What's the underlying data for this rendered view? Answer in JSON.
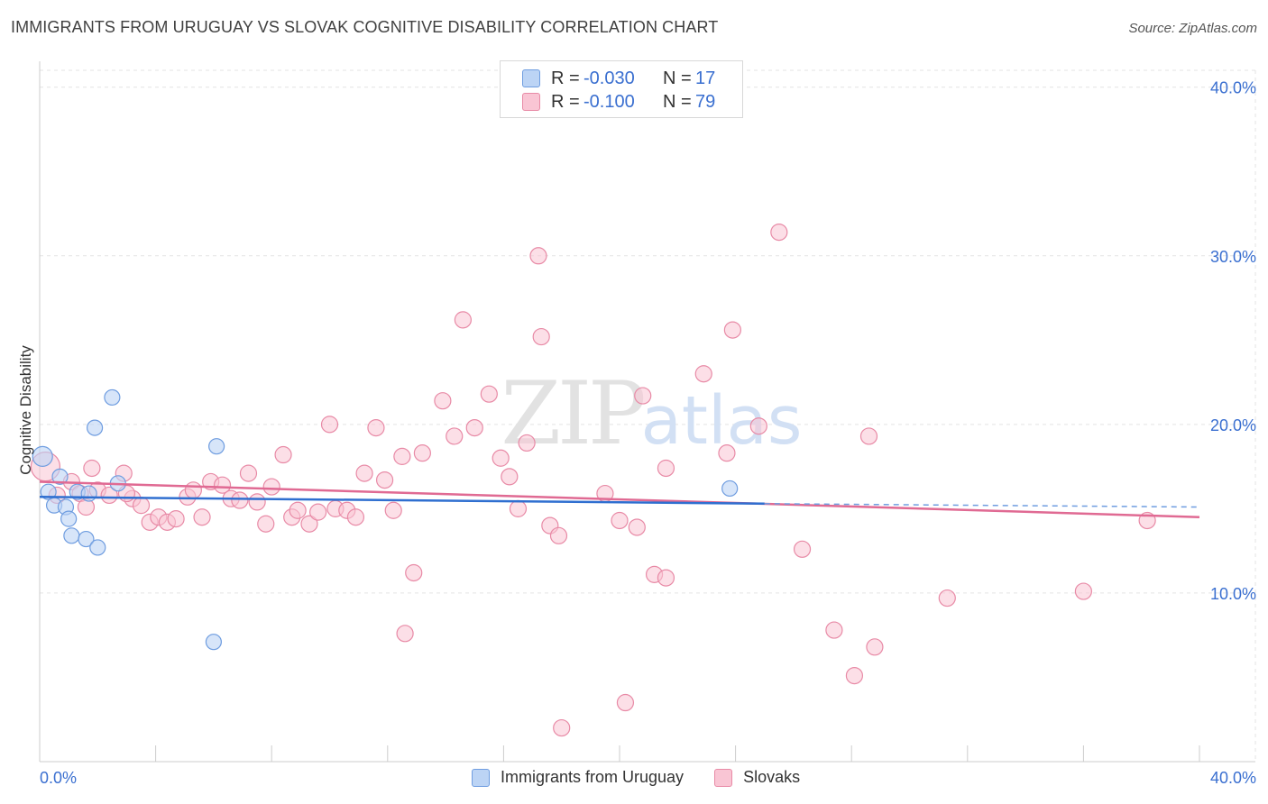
{
  "title": "IMMIGRANTS FROM URUGUAY VS SLOVAK COGNITIVE DISABILITY CORRELATION CHART",
  "source": "Source: ZipAtlas.com",
  "watermark": {
    "zip": "ZIP",
    "atlas": "atlas"
  },
  "colors": {
    "blue_fill": "#bcd4f5",
    "blue_stroke": "#6f9de0",
    "blue_line": "#2f6fd0",
    "pink_fill": "#f9c5d4",
    "pink_stroke": "#e88aa6",
    "pink_line": "#e06a93",
    "axis_label": "#3a6fd0",
    "grid": "#e3e3e3"
  },
  "legend_top": [
    {
      "r_label": "R =",
      "r_value": "-0.030",
      "n_label": "N =",
      "n_value": "17"
    },
    {
      "r_label": "R =",
      "r_value": "-0.100",
      "n_label": "N =",
      "n_value": "79"
    }
  ],
  "legend_bottom": [
    "Immigrants from Uruguay",
    "Slovaks"
  ],
  "chart_data": {
    "type": "scatter",
    "title": "IMMIGRANTS FROM URUGUAY VS SLOVAK COGNITIVE DISABILITY CORRELATION CHART",
    "xlabel": "",
    "ylabel": "Cognitive Disability",
    "xlim": [
      0,
      40
    ],
    "ylim": [
      0,
      41
    ],
    "x_tick_labels": [
      "0.0%",
      "40.0%"
    ],
    "y_ticks": [
      10,
      20,
      30,
      40
    ],
    "y_tick_labels": [
      "10.0%",
      "20.0%",
      "30.0%",
      "40.0%"
    ],
    "grid": true,
    "series": [
      {
        "name": "Immigrants from Uruguay",
        "r": -0.03,
        "n": 17,
        "trend": {
          "x": [
            0,
            25
          ],
          "y": [
            15.7,
            15.3
          ]
        },
        "trend_dashed": {
          "x": [
            25,
            40
          ],
          "y": [
            15.3,
            15.1
          ]
        },
        "points": [
          {
            "x": 0.1,
            "y": 18.1
          },
          {
            "x": 0.3,
            "y": 16.0
          },
          {
            "x": 0.5,
            "y": 15.2
          },
          {
            "x": 0.7,
            "y": 16.9
          },
          {
            "x": 0.9,
            "y": 15.1
          },
          {
            "x": 1.0,
            "y": 14.4
          },
          {
            "x": 1.1,
            "y": 13.4
          },
          {
            "x": 1.3,
            "y": 16.0
          },
          {
            "x": 1.6,
            "y": 13.2
          },
          {
            "x": 1.7,
            "y": 15.9
          },
          {
            "x": 1.9,
            "y": 19.8
          },
          {
            "x": 2.0,
            "y": 12.7
          },
          {
            "x": 2.5,
            "y": 21.6
          },
          {
            "x": 2.7,
            "y": 16.5
          },
          {
            "x": 6.1,
            "y": 18.7
          },
          {
            "x": 6.0,
            "y": 7.1
          },
          {
            "x": 23.8,
            "y": 16.2
          }
        ]
      },
      {
        "name": "Slovaks",
        "r": -0.1,
        "n": 79,
        "trend": {
          "x": [
            0,
            40
          ],
          "y": [
            16.6,
            14.5
          ]
        },
        "points": [
          {
            "x": 0.2,
            "y": 17.5
          },
          {
            "x": 0.6,
            "y": 15.8
          },
          {
            "x": 1.1,
            "y": 16.6
          },
          {
            "x": 1.4,
            "y": 15.9
          },
          {
            "x": 1.6,
            "y": 15.1
          },
          {
            "x": 1.8,
            "y": 17.4
          },
          {
            "x": 2.0,
            "y": 16.1
          },
          {
            "x": 2.4,
            "y": 15.8
          },
          {
            "x": 2.9,
            "y": 17.1
          },
          {
            "x": 3.2,
            "y": 15.6
          },
          {
            "x": 3.5,
            "y": 15.2
          },
          {
            "x": 3.8,
            "y": 14.2
          },
          {
            "x": 4.1,
            "y": 14.5
          },
          {
            "x": 4.4,
            "y": 14.2
          },
          {
            "x": 4.7,
            "y": 14.4
          },
          {
            "x": 5.1,
            "y": 15.7
          },
          {
            "x": 5.3,
            "y": 16.1
          },
          {
            "x": 5.6,
            "y": 14.5
          },
          {
            "x": 5.9,
            "y": 16.6
          },
          {
            "x": 6.3,
            "y": 16.4
          },
          {
            "x": 6.6,
            "y": 15.6
          },
          {
            "x": 6.9,
            "y": 15.5
          },
          {
            "x": 7.2,
            "y": 17.1
          },
          {
            "x": 7.5,
            "y": 15.4
          },
          {
            "x": 7.8,
            "y": 14.1
          },
          {
            "x": 8.0,
            "y": 16.3
          },
          {
            "x": 8.4,
            "y": 18.2
          },
          {
            "x": 8.7,
            "y": 14.5
          },
          {
            "x": 8.9,
            "y": 14.9
          },
          {
            "x": 9.3,
            "y": 14.1
          },
          {
            "x": 9.6,
            "y": 14.8
          },
          {
            "x": 10.0,
            "y": 20.0
          },
          {
            "x": 10.2,
            "y": 15.0
          },
          {
            "x": 10.6,
            "y": 14.9
          },
          {
            "x": 10.9,
            "y": 14.5
          },
          {
            "x": 11.2,
            "y": 17.1
          },
          {
            "x": 11.6,
            "y": 19.8
          },
          {
            "x": 11.9,
            "y": 16.7
          },
          {
            "x": 12.2,
            "y": 14.9
          },
          {
            "x": 12.5,
            "y": 18.1
          },
          {
            "x": 12.6,
            "y": 7.6
          },
          {
            "x": 12.9,
            "y": 11.2
          },
          {
            "x": 13.2,
            "y": 18.3
          },
          {
            "x": 13.9,
            "y": 21.4
          },
          {
            "x": 14.3,
            "y": 19.3
          },
          {
            "x": 14.6,
            "y": 26.2
          },
          {
            "x": 15.0,
            "y": 19.8
          },
          {
            "x": 15.5,
            "y": 21.8
          },
          {
            "x": 15.9,
            "y": 18.0
          },
          {
            "x": 16.2,
            "y": 16.9
          },
          {
            "x": 16.5,
            "y": 15.0
          },
          {
            "x": 16.8,
            "y": 18.9
          },
          {
            "x": 17.3,
            "y": 25.2
          },
          {
            "x": 17.6,
            "y": 14.0
          },
          {
            "x": 17.9,
            "y": 13.4
          },
          {
            "x": 17.2,
            "y": 30.0
          },
          {
            "x": 18.0,
            "y": 2.0
          },
          {
            "x": 19.5,
            "y": 15.9
          },
          {
            "x": 20.0,
            "y": 14.3
          },
          {
            "x": 20.2,
            "y": 3.5
          },
          {
            "x": 20.6,
            "y": 13.9
          },
          {
            "x": 20.8,
            "y": 21.7
          },
          {
            "x": 21.2,
            "y": 11.1
          },
          {
            "x": 21.6,
            "y": 10.9
          },
          {
            "x": 21.6,
            "y": 17.4
          },
          {
            "x": 22.9,
            "y": 23.0
          },
          {
            "x": 23.7,
            "y": 18.3
          },
          {
            "x": 23.9,
            "y": 25.6
          },
          {
            "x": 24.8,
            "y": 19.9
          },
          {
            "x": 25.5,
            "y": 31.4
          },
          {
            "x": 26.3,
            "y": 12.6
          },
          {
            "x": 27.4,
            "y": 7.8
          },
          {
            "x": 28.1,
            "y": 5.1
          },
          {
            "x": 28.8,
            "y": 6.8
          },
          {
            "x": 28.6,
            "y": 19.3
          },
          {
            "x": 31.3,
            "y": 9.7
          },
          {
            "x": 36.0,
            "y": 10.1
          },
          {
            "x": 38.2,
            "y": 14.3
          },
          {
            "x": 3.0,
            "y": 15.9
          }
        ]
      }
    ]
  }
}
